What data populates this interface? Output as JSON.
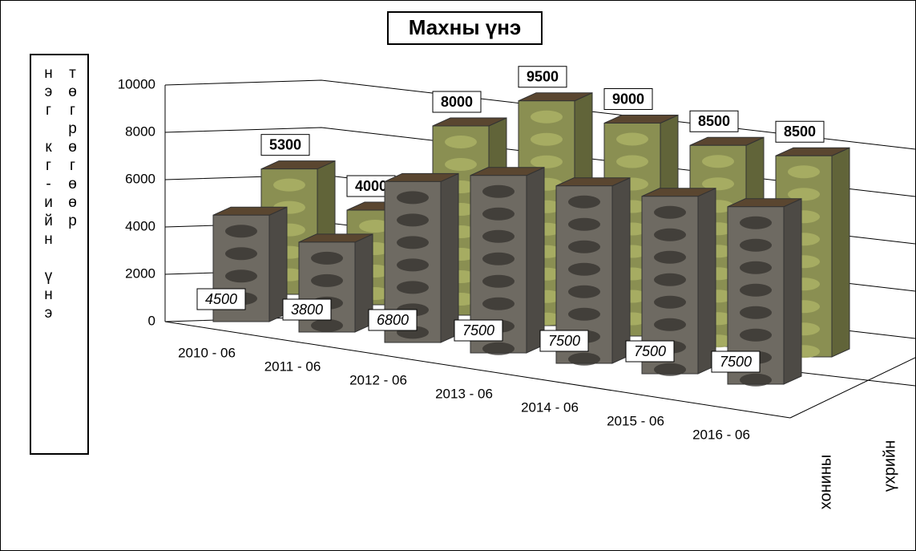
{
  "chart_data": {
    "type": "bar3d",
    "title": "Махны үнэ",
    "y_label": "нэг кг-ийн үнэ төгрөгөөр",
    "categories": [
      "2010 - 06",
      "2011 - 06",
      "2012 - 06",
      "2013 - 06",
      "2014 - 06",
      "2015 - 06",
      "2016 - 06"
    ],
    "series": [
      {
        "name": "хонины",
        "color": "#6e6a62",
        "values": [
          4500,
          3800,
          6800,
          7500,
          7500,
          7500,
          7500
        ]
      },
      {
        "name": "үхрийн",
        "color": "#8a8f52",
        "values": [
          5300,
          4000,
          8000,
          9500,
          9000,
          8500,
          8500
        ]
      }
    ],
    "ylim": [
      0,
      10000
    ],
    "yticks": [
      0,
      2000,
      4000,
      6000,
      8000,
      10000
    ],
    "grid": true
  }
}
